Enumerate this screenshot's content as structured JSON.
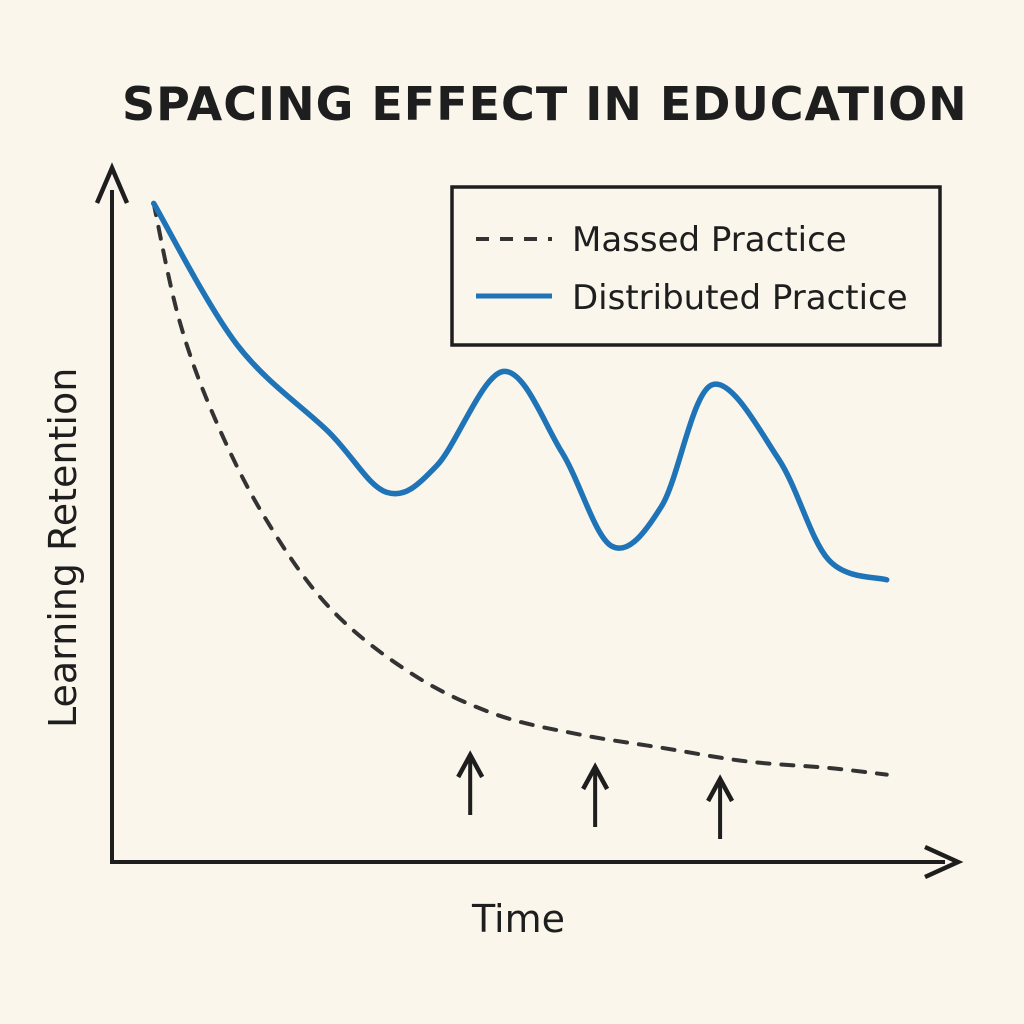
{
  "chart_data": {
    "type": "line",
    "title": "SPACING EFFECT IN EDUCATION",
    "xlabel": "Time",
    "ylabel": "Learning Retention",
    "xlim": [
      0,
      10
    ],
    "ylim": [
      0,
      10
    ],
    "grid": false,
    "legend": {
      "placement": "top-right",
      "entries": [
        "Massed Practice",
        "Distributed Practice"
      ]
    },
    "series": [
      {
        "name": "Massed Practice",
        "style": "dashed",
        "color": "#333333",
        "points": [
          [
            0.5,
            9.8
          ],
          [
            0.8,
            8.1
          ],
          [
            1.2,
            6.7
          ],
          [
            1.8,
            5.2
          ],
          [
            2.6,
            3.8
          ],
          [
            3.6,
            2.8
          ],
          [
            4.6,
            2.2
          ],
          [
            5.6,
            1.9
          ],
          [
            6.6,
            1.7
          ],
          [
            7.6,
            1.5
          ],
          [
            8.6,
            1.4
          ],
          [
            9.3,
            1.3
          ]
        ]
      },
      {
        "name": "Distributed Practice",
        "style": "solid",
        "color": "#1f74b8",
        "points": [
          [
            0.5,
            9.8
          ],
          [
            1.5,
            7.7
          ],
          [
            2.6,
            6.4
          ],
          [
            3.3,
            5.5
          ],
          [
            3.9,
            5.9
          ],
          [
            4.7,
            7.3
          ],
          [
            5.4,
            6.1
          ],
          [
            6.0,
            4.7
          ],
          [
            6.6,
            5.3
          ],
          [
            7.2,
            7.1
          ],
          [
            8.0,
            6.0
          ],
          [
            8.6,
            4.5
          ],
          [
            9.3,
            4.2
          ]
        ]
      }
    ],
    "annotations": [
      {
        "type": "up-arrow",
        "x": 4.3
      },
      {
        "type": "up-arrow",
        "x": 5.8
      },
      {
        "type": "up-arrow",
        "x": 7.3
      }
    ]
  }
}
